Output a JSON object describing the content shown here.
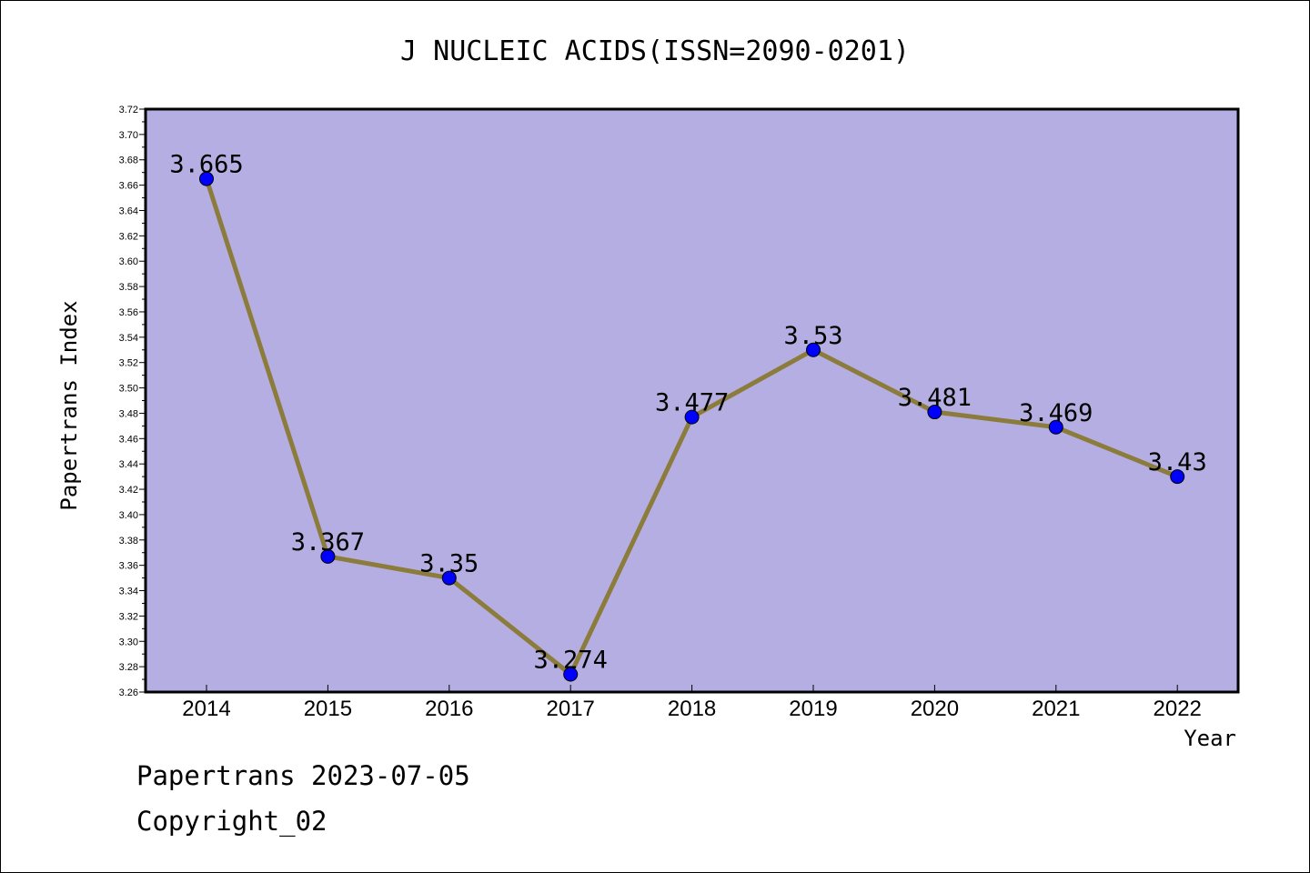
{
  "chart_data": {
    "type": "line",
    "title": "J NUCLEIC ACIDS(ISSN=2090-0201)",
    "xlabel": "Year",
    "ylabel": "Papertrans Index",
    "categories": [
      "2014",
      "2015",
      "2016",
      "2017",
      "2018",
      "2019",
      "2020",
      "2021",
      "2022"
    ],
    "values": [
      3.665,
      3.367,
      3.35,
      3.274,
      3.477,
      3.53,
      3.481,
      3.469,
      3.43
    ],
    "data_labels": [
      "3.665",
      "3.367",
      "3.35",
      "3.274",
      "3.477",
      "3.53",
      "3.481",
      "3.469",
      "3.43"
    ],
    "ylim": [
      3.26,
      3.72
    ],
    "y_ticks": [
      "3.26",
      "3.28",
      "3.30",
      "3.32",
      "3.34",
      "3.36",
      "3.38",
      "3.40",
      "3.42",
      "3.44",
      "3.46",
      "3.48",
      "3.50",
      "3.52",
      "3.54",
      "3.56",
      "3.58",
      "3.60",
      "3.62",
      "3.64",
      "3.66",
      "3.68",
      "3.70",
      "3.72"
    ],
    "grid": false,
    "colors": {
      "plot_background": "#b4aee2",
      "line": "#8c7c3c",
      "marker": "#0000ff"
    }
  },
  "footer": {
    "line1": "Papertrans 2023-07-05",
    "line2": "Copyright_02"
  }
}
